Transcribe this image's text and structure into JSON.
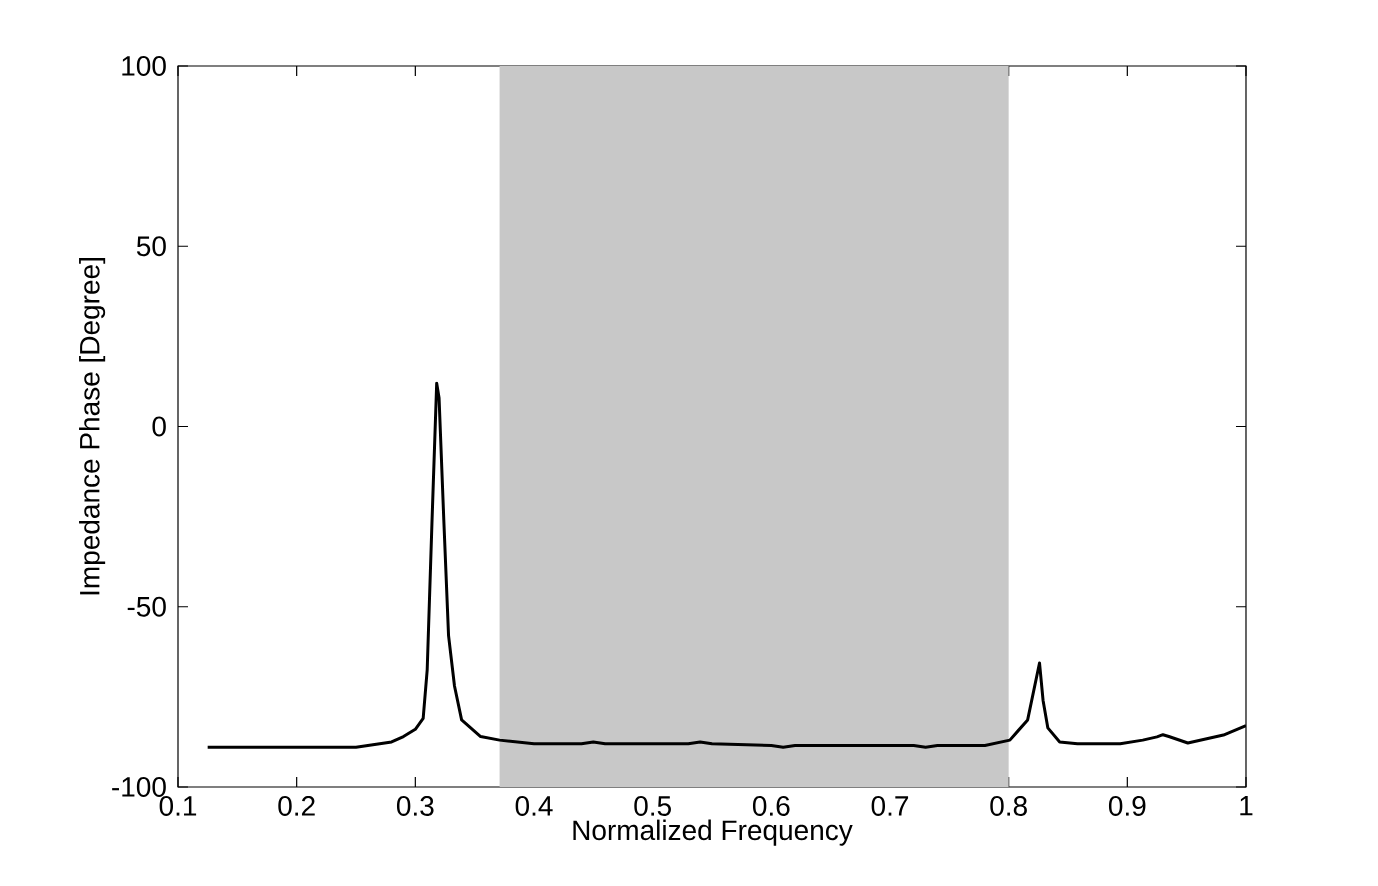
{
  "chart_data": {
    "type": "line",
    "xlabel": "Normalized Frequency",
    "ylabel": "Impedance Phase [Degree]",
    "xlim": [
      0.1,
      1
    ],
    "ylim": [
      -100,
      100
    ],
    "xticks": [
      0.1,
      0.2,
      0.3,
      0.4,
      0.5,
      0.6,
      0.7,
      0.8,
      0.9,
      1
    ],
    "yticks": [
      -100,
      -50,
      0,
      50,
      100
    ],
    "grid": false,
    "marker": "none",
    "line_style": "solid",
    "bands": [
      {
        "axis": "x",
        "from": 0.371,
        "to": 0.8,
        "color": "#c8c8c8"
      }
    ],
    "series": [
      {
        "color": "#000000",
        "x": [
          0.125,
          0.2,
          0.25,
          0.26,
          0.28,
          0.29,
          0.3,
          0.3066,
          0.31,
          0.314,
          0.318,
          0.32,
          0.324,
          0.328,
          0.333,
          0.339,
          0.355,
          0.371,
          0.4,
          0.44,
          0.45,
          0.46,
          0.53,
          0.54,
          0.55,
          0.6,
          0.61,
          0.62,
          0.7,
          0.72,
          0.73,
          0.74,
          0.78,
          0.801,
          0.816,
          0.826,
          0.829,
          0.833,
          0.843,
          0.858,
          0.894,
          0.913,
          0.925,
          0.93,
          0.935,
          0.951,
          0.981,
          1.0
        ],
        "values": [
          -89,
          -89,
          -89,
          -88.5,
          -87.5,
          -86,
          -84,
          -81,
          -67.5,
          -26.8,
          12,
          7.9,
          -26,
          -58,
          -72,
          -81.4,
          -86,
          -87,
          -88,
          -88,
          -87.5,
          -88,
          -88,
          -87.5,
          -88,
          -88.5,
          -89,
          -88.5,
          -88.5,
          -88.5,
          -89,
          -88.5,
          -88.5,
          -87,
          -81.4,
          -65.6,
          -76,
          -83.6,
          -87.5,
          -88,
          -88,
          -87,
          -86.1,
          -85.5,
          -86,
          -87.8,
          -85.6,
          -83
        ]
      }
    ]
  }
}
